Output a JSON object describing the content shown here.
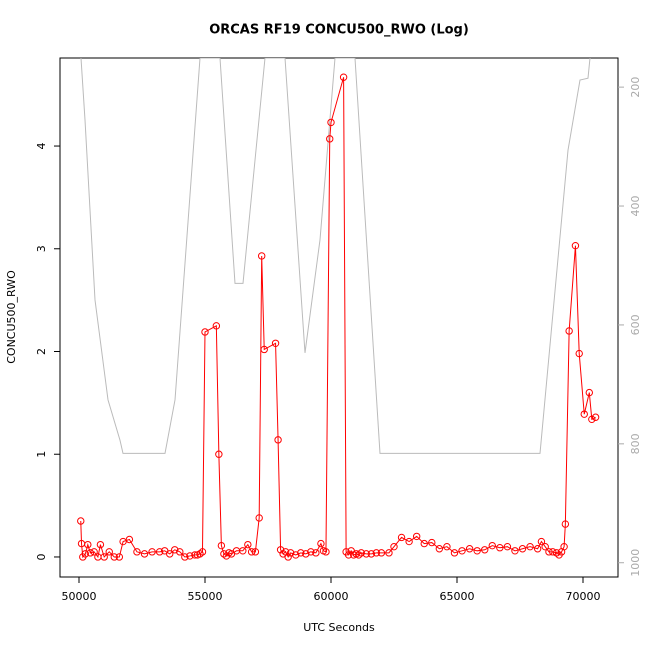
{
  "chart_data": {
    "type": "line",
    "title": "ORCAS RF19 CONCU500_RWO (Log)",
    "x_label": "UTC Seconds",
    "y_label": "CONCU500_RWO",
    "xlim": [
      49246,
      71389
    ],
    "xticks": [
      50000,
      55000,
      60000,
      65000,
      70000
    ],
    "ylim": [
      -0.195,
      4.857
    ],
    "yticks": [
      0,
      1,
      2,
      3,
      4
    ],
    "y2lim": [
      1024,
      151
    ],
    "y2ticks": [
      200,
      400,
      600,
      800,
      1000
    ],
    "series": [
      {
        "color": "#ff0000",
        "markers": true,
        "x": [
          50070,
          50100,
          50150,
          50250,
          50350,
          50450,
          50600,
          50750,
          50850,
          51000,
          51200,
          51400,
          51600,
          51750,
          52000,
          52300,
          52600,
          52900,
          53200,
          53400,
          53600,
          53800,
          54000,
          54200,
          54400,
          54600,
          54700,
          54800,
          54900,
          55000,
          55450,
          55550,
          55650,
          55750,
          55850,
          55950,
          56050,
          56250,
          56500,
          56700,
          56850,
          57000,
          57150,
          57250,
          57350,
          57800,
          57900,
          58000,
          58100,
          58200,
          58300,
          58400,
          58600,
          58800,
          59000,
          59200,
          59400,
          59600,
          59700,
          59800,
          59950,
          60000,
          60500,
          60600,
          60700,
          60800,
          60900,
          61000,
          61100,
          61200,
          61400,
          61600,
          61800,
          62000,
          62300,
          62500,
          62800,
          63100,
          63400,
          63700,
          64000,
          64300,
          64600,
          64900,
          65200,
          65500,
          65800,
          66100,
          66400,
          66700,
          67000,
          67300,
          67600,
          67900,
          68200,
          68350,
          68500,
          68650,
          68800,
          68950,
          69050,
          69150,
          69250,
          69300,
          69450,
          69700,
          69850,
          70050,
          70250,
          70350,
          70500
        ],
        "values": [
          0.35,
          0.13,
          0.0,
          0.03,
          0.12,
          0.04,
          0.05,
          0.0,
          0.12,
          0.0,
          0.05,
          0.0,
          0.0,
          0.15,
          0.17,
          0.05,
          0.03,
          0.05,
          0.05,
          0.06,
          0.03,
          0.07,
          0.05,
          0.0,
          0.01,
          0.02,
          0.02,
          0.03,
          0.05,
          2.19,
          2.25,
          1.0,
          0.11,
          0.03,
          0.01,
          0.04,
          0.03,
          0.06,
          0.06,
          0.12,
          0.05,
          0.05,
          0.38,
          2.93,
          2.02,
          2.08,
          1.14,
          0.07,
          0.03,
          0.05,
          0.0,
          0.04,
          0.02,
          0.04,
          0.03,
          0.05,
          0.04,
          0.13,
          0.06,
          0.05,
          4.07,
          4.23,
          4.67,
          0.05,
          0.02,
          0.06,
          0.02,
          0.03,
          0.02,
          0.04,
          0.03,
          0.03,
          0.04,
          0.04,
          0.04,
          0.1,
          0.19,
          0.15,
          0.2,
          0.13,
          0.14,
          0.08,
          0.1,
          0.04,
          0.06,
          0.08,
          0.06,
          0.07,
          0.11,
          0.09,
          0.1,
          0.06,
          0.08,
          0.1,
          0.08,
          0.15,
          0.1,
          0.05,
          0.05,
          0.04,
          0.02,
          0.05,
          0.1,
          0.32,
          2.2,
          3.03,
          1.98,
          1.39,
          1.6,
          1.34,
          1.36
        ]
      },
      {
        "color": "#bbbbbb",
        "axis": "y2",
        "markers": false,
        "x": [
          50079,
          50238,
          50635,
          51151,
          51627,
          51746,
          53413,
          53810,
          54802,
          55595,
          56190,
          56508,
          56984,
          57381,
          58175,
          58968,
          59563,
          60159,
          60952,
          61944,
          68294,
          69405,
          69881,
          70198,
          70278
        ],
        "values": [
          151,
          255,
          558,
          726,
          794,
          816,
          816,
          726,
          151,
          151,
          530,
          530,
          323,
          151,
          151,
          647,
          457,
          151,
          151,
          816,
          816,
          306,
          188,
          185,
          151
        ]
      }
    ]
  }
}
